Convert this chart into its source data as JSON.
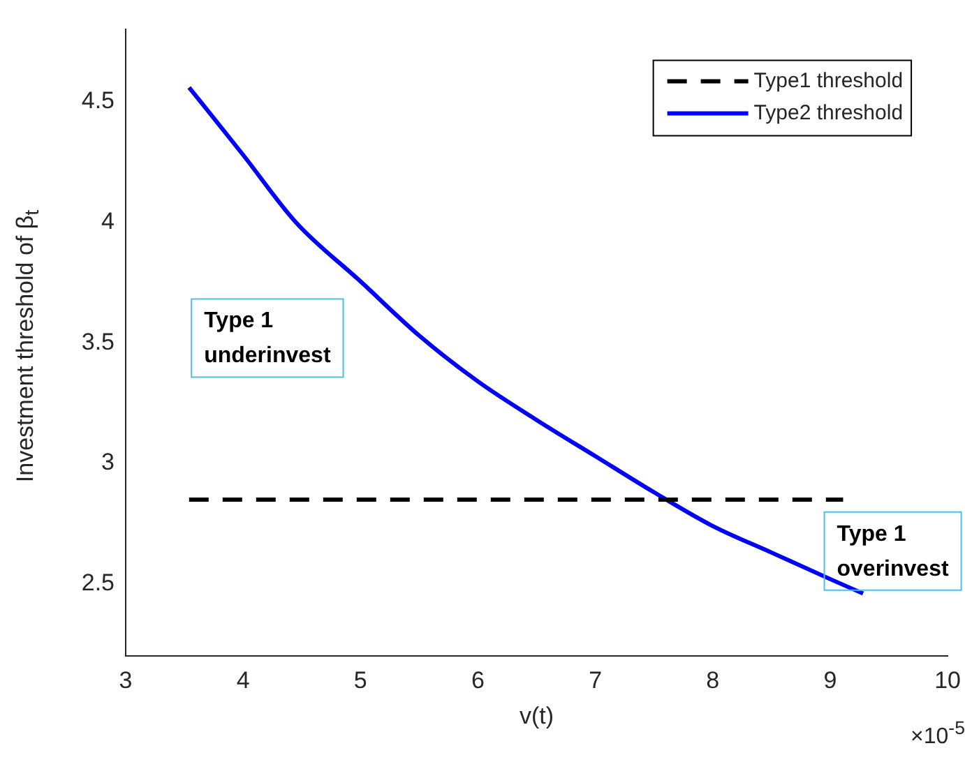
{
  "chart_data": {
    "type": "line",
    "xlabel": "v(t)",
    "ylabel": "Investment threshold of β$_{t}$",
    "xlim": [
      3,
      10
    ],
    "xticks": [
      3,
      4,
      5,
      6,
      7,
      8,
      9,
      10
    ],
    "ylim": [
      2.2,
      4.8
    ],
    "yticks": [
      2.5,
      3,
      3.5,
      4,
      4.5
    ],
    "grid": false,
    "legend": "top right",
    "marker": "none",
    "series": [
      {
        "name": "Type1 threshold",
        "color": "#000000",
        "line_style": "dashed",
        "x": [
          3.54,
          9.11
        ],
        "values": [
          2.85,
          2.85
        ]
      },
      {
        "name": "Type2 threshold",
        "color": "#0000ff",
        "line_style": "solid",
        "x": [
          3.54,
          4,
          4.45,
          5,
          5.5,
          6,
          6.5,
          7,
          7.5,
          8,
          8.5,
          9,
          9.28
        ],
        "values": [
          4.56,
          4.28,
          4.0,
          3.755,
          3.53,
          3.34,
          3.18,
          3.03,
          2.88,
          2.74,
          2.63,
          2.52,
          2.46
        ]
      }
    ],
    "annotations": [
      "Type 1\nunderinvest",
      "Type 1\noverinvest",
      "×10$^{-5}$"
    ]
  }
}
